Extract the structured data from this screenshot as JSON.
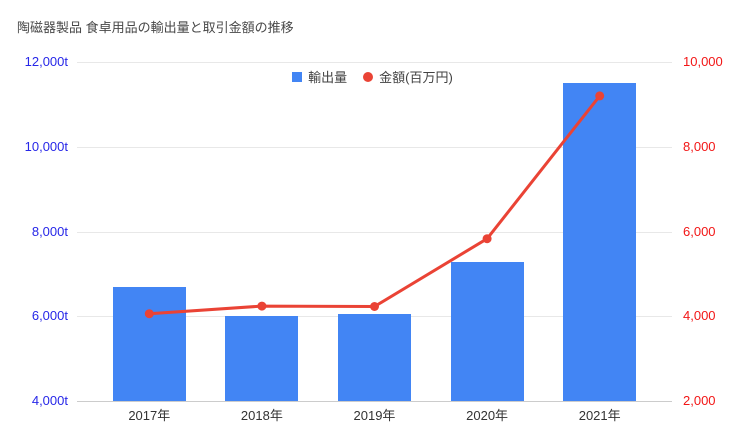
{
  "title": "陶磁器製品 食卓用品の輸出量と取引金額の推移",
  "colors": {
    "background": "#ffffff",
    "bar": "#4285f4",
    "line": "#ea4335",
    "left_axis_label": "#2727e8",
    "right_axis_label": "#f21616",
    "title_text": "#474747",
    "legend_text": "#424242",
    "x_label": "#333333",
    "gridline": "#e8e8e8",
    "axis_line": "#cccccc"
  },
  "legend": {
    "items": [
      {
        "label": "輸出量",
        "swatch": "square",
        "color": "#4285f4"
      },
      {
        "label": "金額(百万円)",
        "swatch": "circle",
        "color": "#ea4335"
      }
    ]
  },
  "chart_data": {
    "type": "combo: bar + line",
    "title": "陶磁器製品 食卓用品の輸出量と取引金額の推移",
    "categories": [
      "2017年",
      "2018年",
      "2019年",
      "2020年",
      "2021年"
    ],
    "series": [
      {
        "name": "輸出量",
        "type": "bar",
        "axis": "left",
        "color": "#4285f4",
        "values": [
          6700,
          6000,
          6050,
          7270,
          11500
        ]
      },
      {
        "name": "金額(百万円)",
        "type": "line",
        "axis": "right",
        "color": "#ea4335",
        "values": [
          4060,
          4240,
          4230,
          5830,
          9200
        ]
      }
    ],
    "left_axis": {
      "unit": "t",
      "min": 4000,
      "max": 12000,
      "tick_values": [
        4000,
        6000,
        8000,
        10000,
        12000
      ],
      "tick_labels": [
        "4,000t",
        "6,000t",
        "8,000t",
        "10,000t",
        "12,000t"
      ]
    },
    "right_axis": {
      "unit": "百万円",
      "min": 2000,
      "max": 10000,
      "tick_values": [
        2000,
        4000,
        6000,
        8000,
        10000
      ],
      "tick_labels": [
        "2,000",
        "4,000",
        "6,000",
        "8,000",
        "10,000"
      ]
    },
    "grid": true,
    "legend_position": "top-center"
  }
}
